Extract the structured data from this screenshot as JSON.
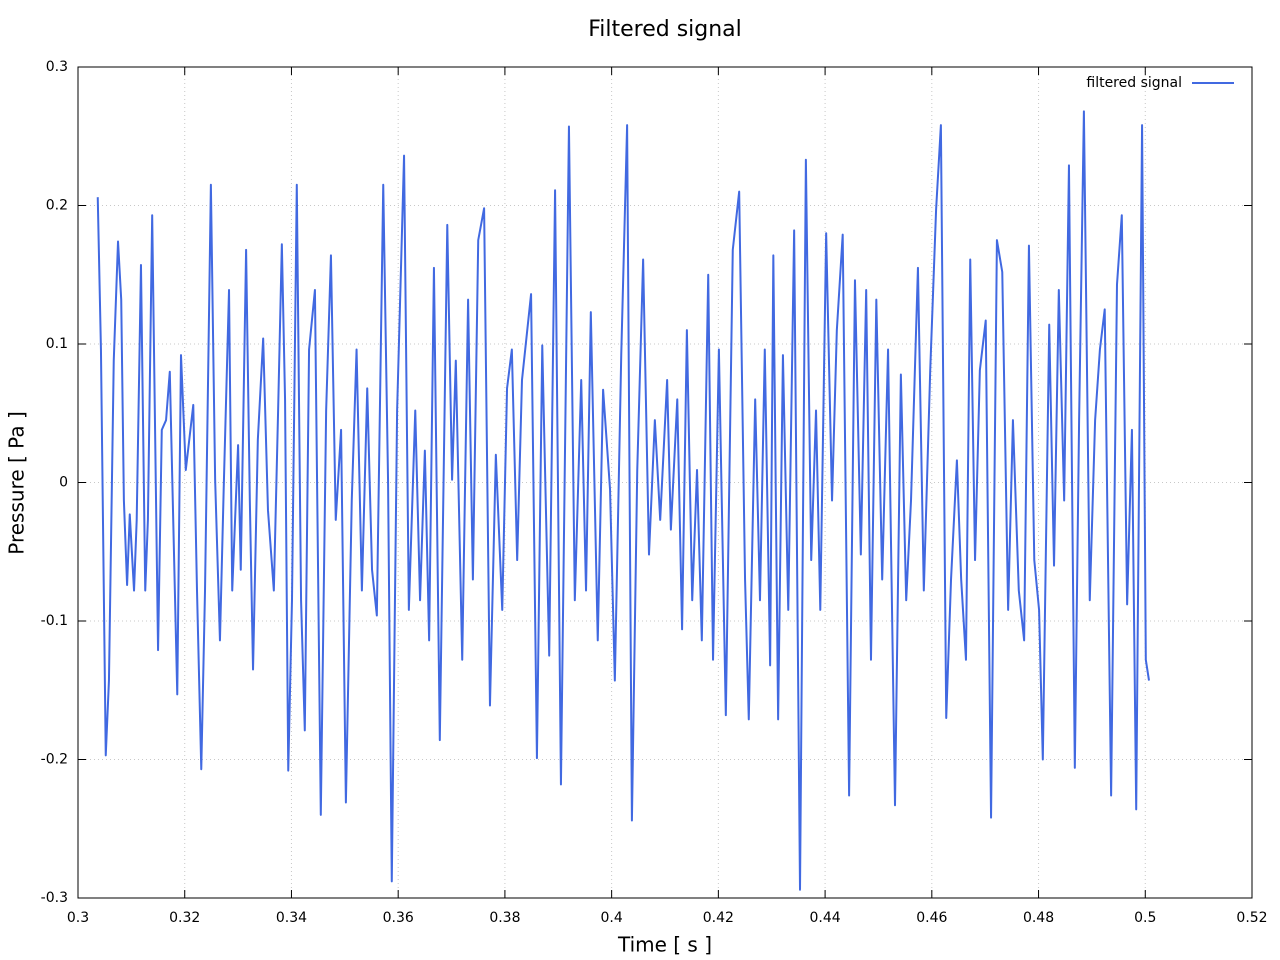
{
  "chart_data": {
    "type": "line",
    "title": "Filtered signal",
    "x_label": "Time [ s ]",
    "y_label": "Pressure [ Pa ]",
    "x": [
      0.3037,
      0.3043,
      0.3052,
      0.3058,
      0.3067,
      0.3075,
      0.3081,
      0.3086,
      0.3092,
      0.3097,
      0.3105,
      0.311,
      0.3118,
      0.3126,
      0.3131,
      0.3139,
      0.315,
      0.3157,
      0.3165,
      0.3172,
      0.3186,
      0.3193,
      0.3202,
      0.3216,
      0.3223,
      0.3231,
      0.3238,
      0.3249,
      0.3257,
      0.3266,
      0.3273,
      0.3283,
      0.3289,
      0.33,
      0.3305,
      0.3315,
      0.3322,
      0.3328,
      0.3337,
      0.3347,
      0.3356,
      0.3367,
      0.3375,
      0.3382,
      0.3388,
      0.3394,
      0.3401,
      0.341,
      0.3418,
      0.3425,
      0.3433,
      0.3444,
      0.3455,
      0.3465,
      0.3474,
      0.3483,
      0.3493,
      0.3502,
      0.3513,
      0.3522,
      0.3532,
      0.3542,
      0.3551,
      0.356,
      0.3572,
      0.3581,
      0.3588,
      0.3598,
      0.3611,
      0.362,
      0.3632,
      0.3641,
      0.365,
      0.3658,
      0.3667,
      0.3678,
      0.3692,
      0.3701,
      0.3708,
      0.372,
      0.3731,
      0.374,
      0.375,
      0.3761,
      0.3772,
      0.3783,
      0.3795,
      0.3804,
      0.3813,
      0.3823,
      0.3832,
      0.3849,
      0.386,
      0.387,
      0.3883,
      0.3894,
      0.3905,
      0.392,
      0.3931,
      0.3943,
      0.3952,
      0.3961,
      0.3974,
      0.3984,
      0.3997,
      0.4006,
      0.4018,
      0.4029,
      0.4038,
      0.4048,
      0.4059,
      0.407,
      0.4081,
      0.4091,
      0.4104,
      0.4111,
      0.4123,
      0.4132,
      0.4141,
      0.4151,
      0.416,
      0.4169,
      0.4181,
      0.419,
      0.4201,
      0.4214,
      0.4227,
      0.4239,
      0.425,
      0.4257,
      0.4269,
      0.4278,
      0.4287,
      0.4297,
      0.4303,
      0.4312,
      0.4321,
      0.4331,
      0.4342,
      0.4353,
      0.4364,
      0.4374,
      0.4383,
      0.4391,
      0.4402,
      0.4413,
      0.4422,
      0.4433,
      0.4445,
      0.4456,
      0.4467,
      0.4477,
      0.4486,
      0.4496,
      0.4507,
      0.4518,
      0.4531,
      0.4542,
      0.4552,
      0.4561,
      0.4574,
      0.4585,
      0.4597,
      0.4608,
      0.4617,
      0.4627,
      0.4636,
      0.4647,
      0.4655,
      0.4664,
      0.4672,
      0.4681,
      0.469,
      0.4701,
      0.4711,
      0.4722,
      0.4732,
      0.4743,
      0.4752,
      0.4763,
      0.4773,
      0.4782,
      0.4792,
      0.4801,
      0.4808,
      0.482,
      0.4829,
      0.4838,
      0.4848,
      0.4857,
      0.4868,
      0.4876,
      0.4885,
      0.4896,
      0.4906,
      0.4915,
      0.4924,
      0.4936,
      0.4947,
      0.4956,
      0.4966,
      0.4975,
      0.4983,
      0.4994,
      0.5001,
      0.5007
    ],
    "series": [
      {
        "name": "filtered signal",
        "color": "#4169e1",
        "values": [
          0.206,
          0.096,
          -0.197,
          -0.143,
          0.088,
          0.174,
          0.132,
          -0.013,
          -0.074,
          -0.023,
          -0.078,
          -0.027,
          0.157,
          -0.078,
          -0.027,
          0.193,
          -0.121,
          0.038,
          0.045,
          0.08,
          -0.153,
          0.092,
          0.009,
          0.056,
          -0.078,
          -0.207,
          -0.078,
          0.215,
          0.002,
          -0.114,
          -0.005,
          0.139,
          -0.078,
          0.027,
          -0.063,
          0.168,
          -0.013,
          -0.135,
          0.031,
          0.104,
          -0.02,
          -0.078,
          0.052,
          0.172,
          0.06,
          -0.208,
          -0.085,
          0.215,
          -0.085,
          -0.179,
          0.096,
          0.139,
          -0.24,
          0.052,
          0.164,
          -0.027,
          0.038,
          -0.231,
          -0.013,
          0.096,
          -0.078,
          0.068,
          -0.063,
          -0.096,
          0.215,
          0.002,
          -0.288,
          0.052,
          0.236,
          -0.092,
          0.052,
          -0.085,
          0.023,
          -0.114,
          0.155,
          -0.186,
          0.186,
          0.002,
          0.088,
          -0.128,
          0.132,
          -0.07,
          0.175,
          0.198,
          -0.161,
          0.02,
          -0.092,
          0.068,
          0.096,
          -0.056,
          0.074,
          0.136,
          -0.199,
          0.099,
          -0.125,
          0.211,
          -0.218,
          0.257,
          -0.085,
          0.074,
          -0.078,
          0.123,
          -0.114,
          0.067,
          -0.005,
          -0.143,
          0.092,
          0.258,
          -0.244,
          0.009,
          0.161,
          -0.052,
          0.045,
          -0.027,
          0.074,
          -0.034,
          0.06,
          -0.106,
          0.11,
          -0.085,
          0.009,
          -0.114,
          0.15,
          -0.128,
          0.096,
          -0.168,
          0.168,
          0.21,
          -0.07,
          -0.171,
          0.06,
          -0.085,
          0.096,
          -0.132,
          0.164,
          -0.171,
          0.092,
          -0.092,
          0.182,
          -0.294,
          0.233,
          -0.056,
          0.052,
          -0.092,
          0.18,
          -0.013,
          0.11,
          0.179,
          -0.226,
          0.146,
          -0.052,
          0.139,
          -0.128,
          0.132,
          -0.07,
          0.096,
          -0.233,
          0.078,
          -0.085,
          -0.013,
          0.155,
          -0.078,
          0.081,
          0.197,
          0.258,
          -0.17,
          -0.07,
          0.016,
          -0.07,
          -0.128,
          0.161,
          -0.056,
          0.081,
          0.117,
          -0.242,
          0.175,
          0.152,
          -0.092,
          0.045,
          -0.078,
          -0.114,
          0.171,
          -0.056,
          -0.092,
          -0.2,
          0.114,
          -0.06,
          0.139,
          -0.013,
          0.229,
          -0.206,
          0.045,
          0.268,
          -0.085,
          0.045,
          0.096,
          0.125,
          -0.226,
          0.143,
          0.193,
          -0.088,
          0.038,
          -0.236,
          0.258,
          -0.128,
          -0.143
        ]
      }
    ],
    "xlim": [
      0.3,
      0.52
    ],
    "ylim": [
      -0.3,
      0.3
    ],
    "xticks": [
      0.3,
      0.32,
      0.34,
      0.36,
      0.38,
      0.4,
      0.42,
      0.44,
      0.46,
      0.48,
      0.5,
      0.52
    ],
    "yticks": [
      -0.3,
      -0.2,
      -0.1,
      0,
      0.1,
      0.2,
      0.3
    ],
    "grid": true,
    "legend": "upper right"
  }
}
